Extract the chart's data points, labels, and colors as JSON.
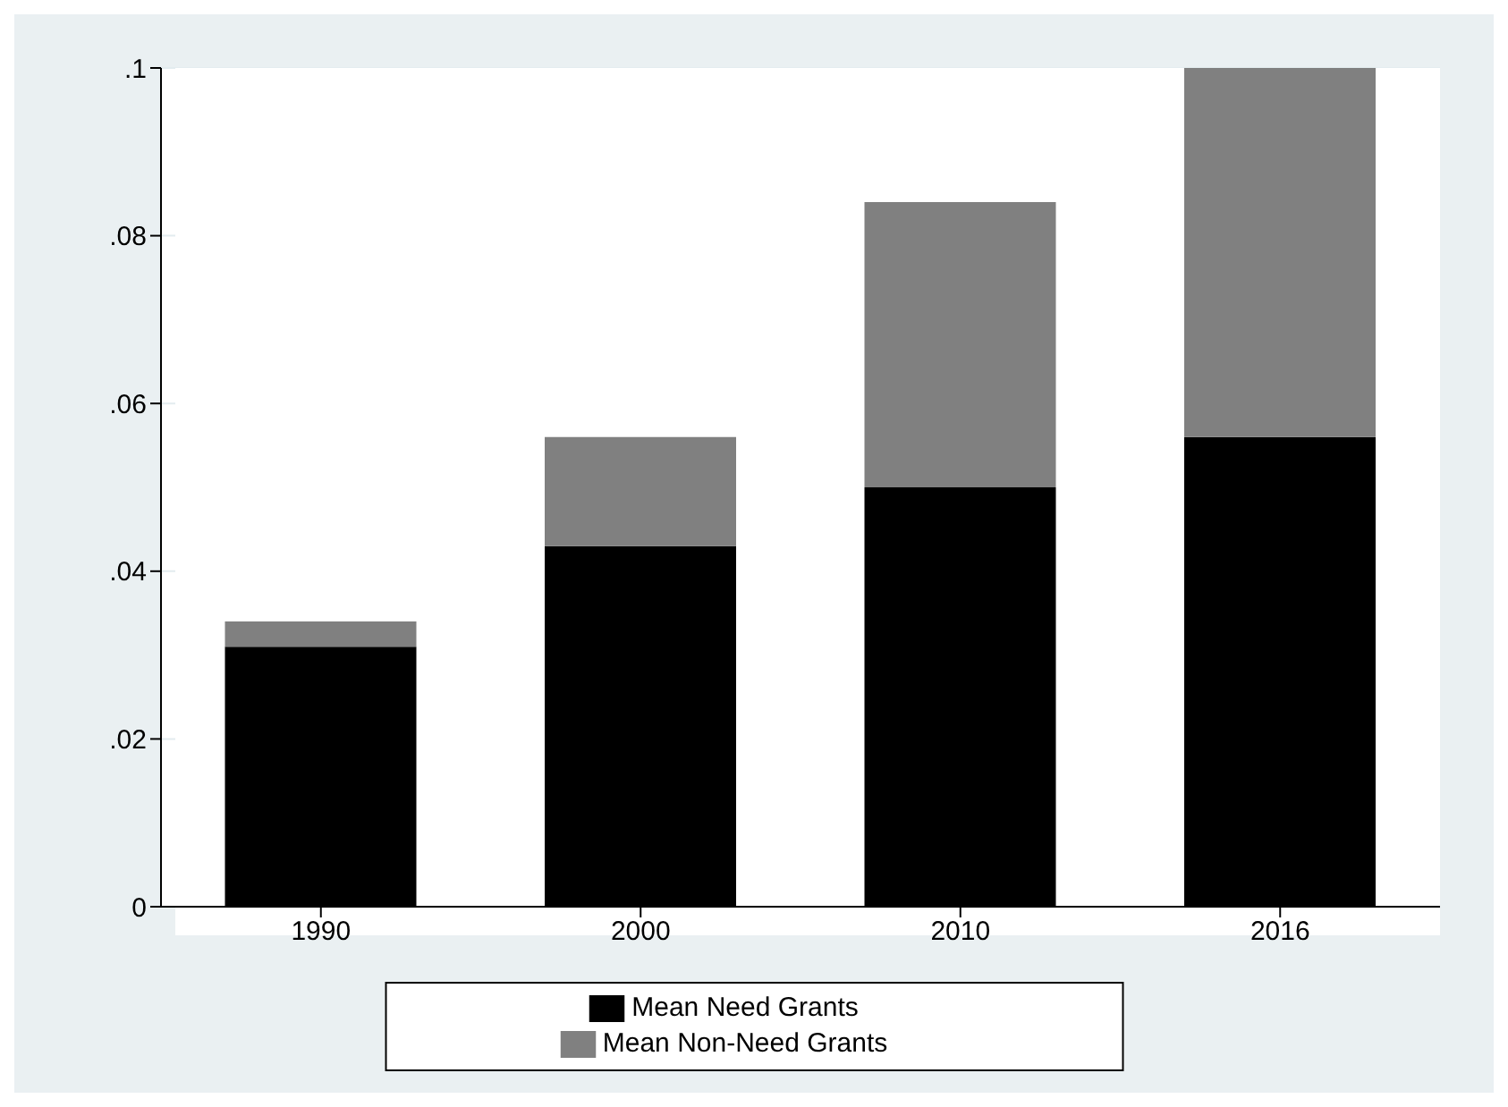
{
  "chart_data": {
    "type": "bar",
    "stacked": true,
    "categories": [
      "1990",
      "2000",
      "2010",
      "2016"
    ],
    "series": [
      {
        "name": "Mean Need Grants",
        "color": "#000000",
        "values": [
          0.031,
          0.043,
          0.05,
          0.056
        ]
      },
      {
        "name": "Mean Non-Need Grants",
        "color": "#808080",
        "values": [
          0.003,
          0.013,
          0.034,
          0.044
        ]
      }
    ],
    "ylim": [
      0,
      0.1
    ],
    "yticks": [
      0,
      {
        "value": 0.02,
        "label": ".02"
      },
      {
        "value": 0.04,
        "label": ".04"
      },
      {
        "value": 0.06,
        "label": ".06"
      },
      {
        "value": 0.08,
        "label": ".08"
      },
      {
        "value": 0.1,
        "label": ".1"
      }
    ],
    "grid": "y",
    "legend": "bottom"
  }
}
